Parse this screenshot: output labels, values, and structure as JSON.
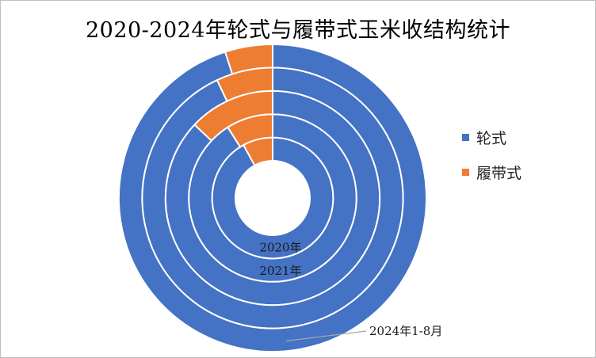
{
  "title": "2020-2024年轮式与履带式玉米收结构统计",
  "colors": {
    "轮式": "#4472C4",
    "履带式": "#ED7D31",
    "separator": "#FFFFFF",
    "leader": "#A6A6A6"
  },
  "chart_data": {
    "type": "doughnut",
    "title": "2020-2024年轮式与履带式玉米收结构统计",
    "series_names": [
      "轮式",
      "履带式"
    ],
    "rings": [
      {
        "label": "2020年",
        "values": [
          92,
          8
        ]
      },
      {
        "label": "2021年",
        "values": [
          91,
          9
        ]
      },
      {
        "label": "",
        "values": [
          87,
          13
        ]
      },
      {
        "label": "",
        "values": [
          93,
          7
        ]
      },
      {
        "label": "2024年1-8月",
        "values": [
          95,
          5
        ]
      }
    ],
    "legend": {
      "position": "right",
      "entries": [
        "轮式",
        "履带式"
      ]
    }
  }
}
